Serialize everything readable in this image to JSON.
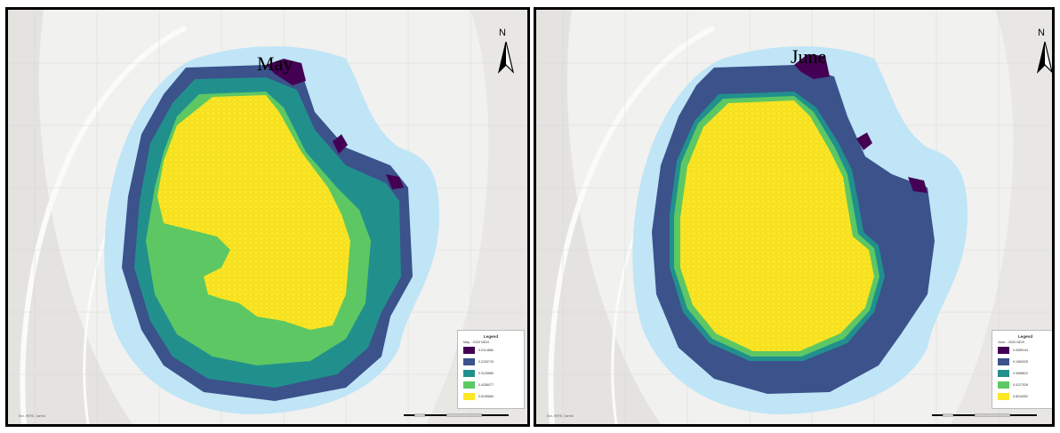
{
  "palette": {
    "page_bg": "#f1f1ef",
    "shade": "#e4e3e0",
    "ridge": "#fbfbfa",
    "buffer": "#bfe5f7",
    "c1": "#440154",
    "c2": "#3b528b",
    "c3": "#21908d",
    "c4": "#5dc863",
    "c5": "#fde725"
  },
  "panels": [
    {
      "title": "May",
      "north_label": "N",
      "legend": {
        "title": "Legend",
        "subtitle": "May - 2020 NDVI",
        "items": [
          {
            "label": "0.0114866",
            "color": "#440154"
          },
          {
            "label": "0.2153715",
            "color": "#3b528b"
          },
          {
            "label": "0.3125880",
            "color": "#21908d"
          },
          {
            "label": "0.4258077",
            "color": "#5dc863"
          },
          {
            "label": "0.8196660",
            "color": "#fde725"
          }
        ]
      },
      "credit": "Esri, HERE, Garmin"
    },
    {
      "title": "June",
      "north_label": "N",
      "legend": {
        "title": "Legend",
        "subtitle": "June - 2020 NDVI",
        "items": [
          {
            "label": "0.0089144",
            "color": "#440154"
          },
          {
            "label": "0.1982025",
            "color": "#3b528b"
          },
          {
            "label": "0.3088812",
            "color": "#21908d"
          },
          {
            "label": "0.4127026",
            "color": "#5dc863"
          },
          {
            "label": "0.8016052",
            "color": "#fde725"
          }
        ]
      },
      "credit": "Esri, HERE, Garmin"
    }
  ]
}
